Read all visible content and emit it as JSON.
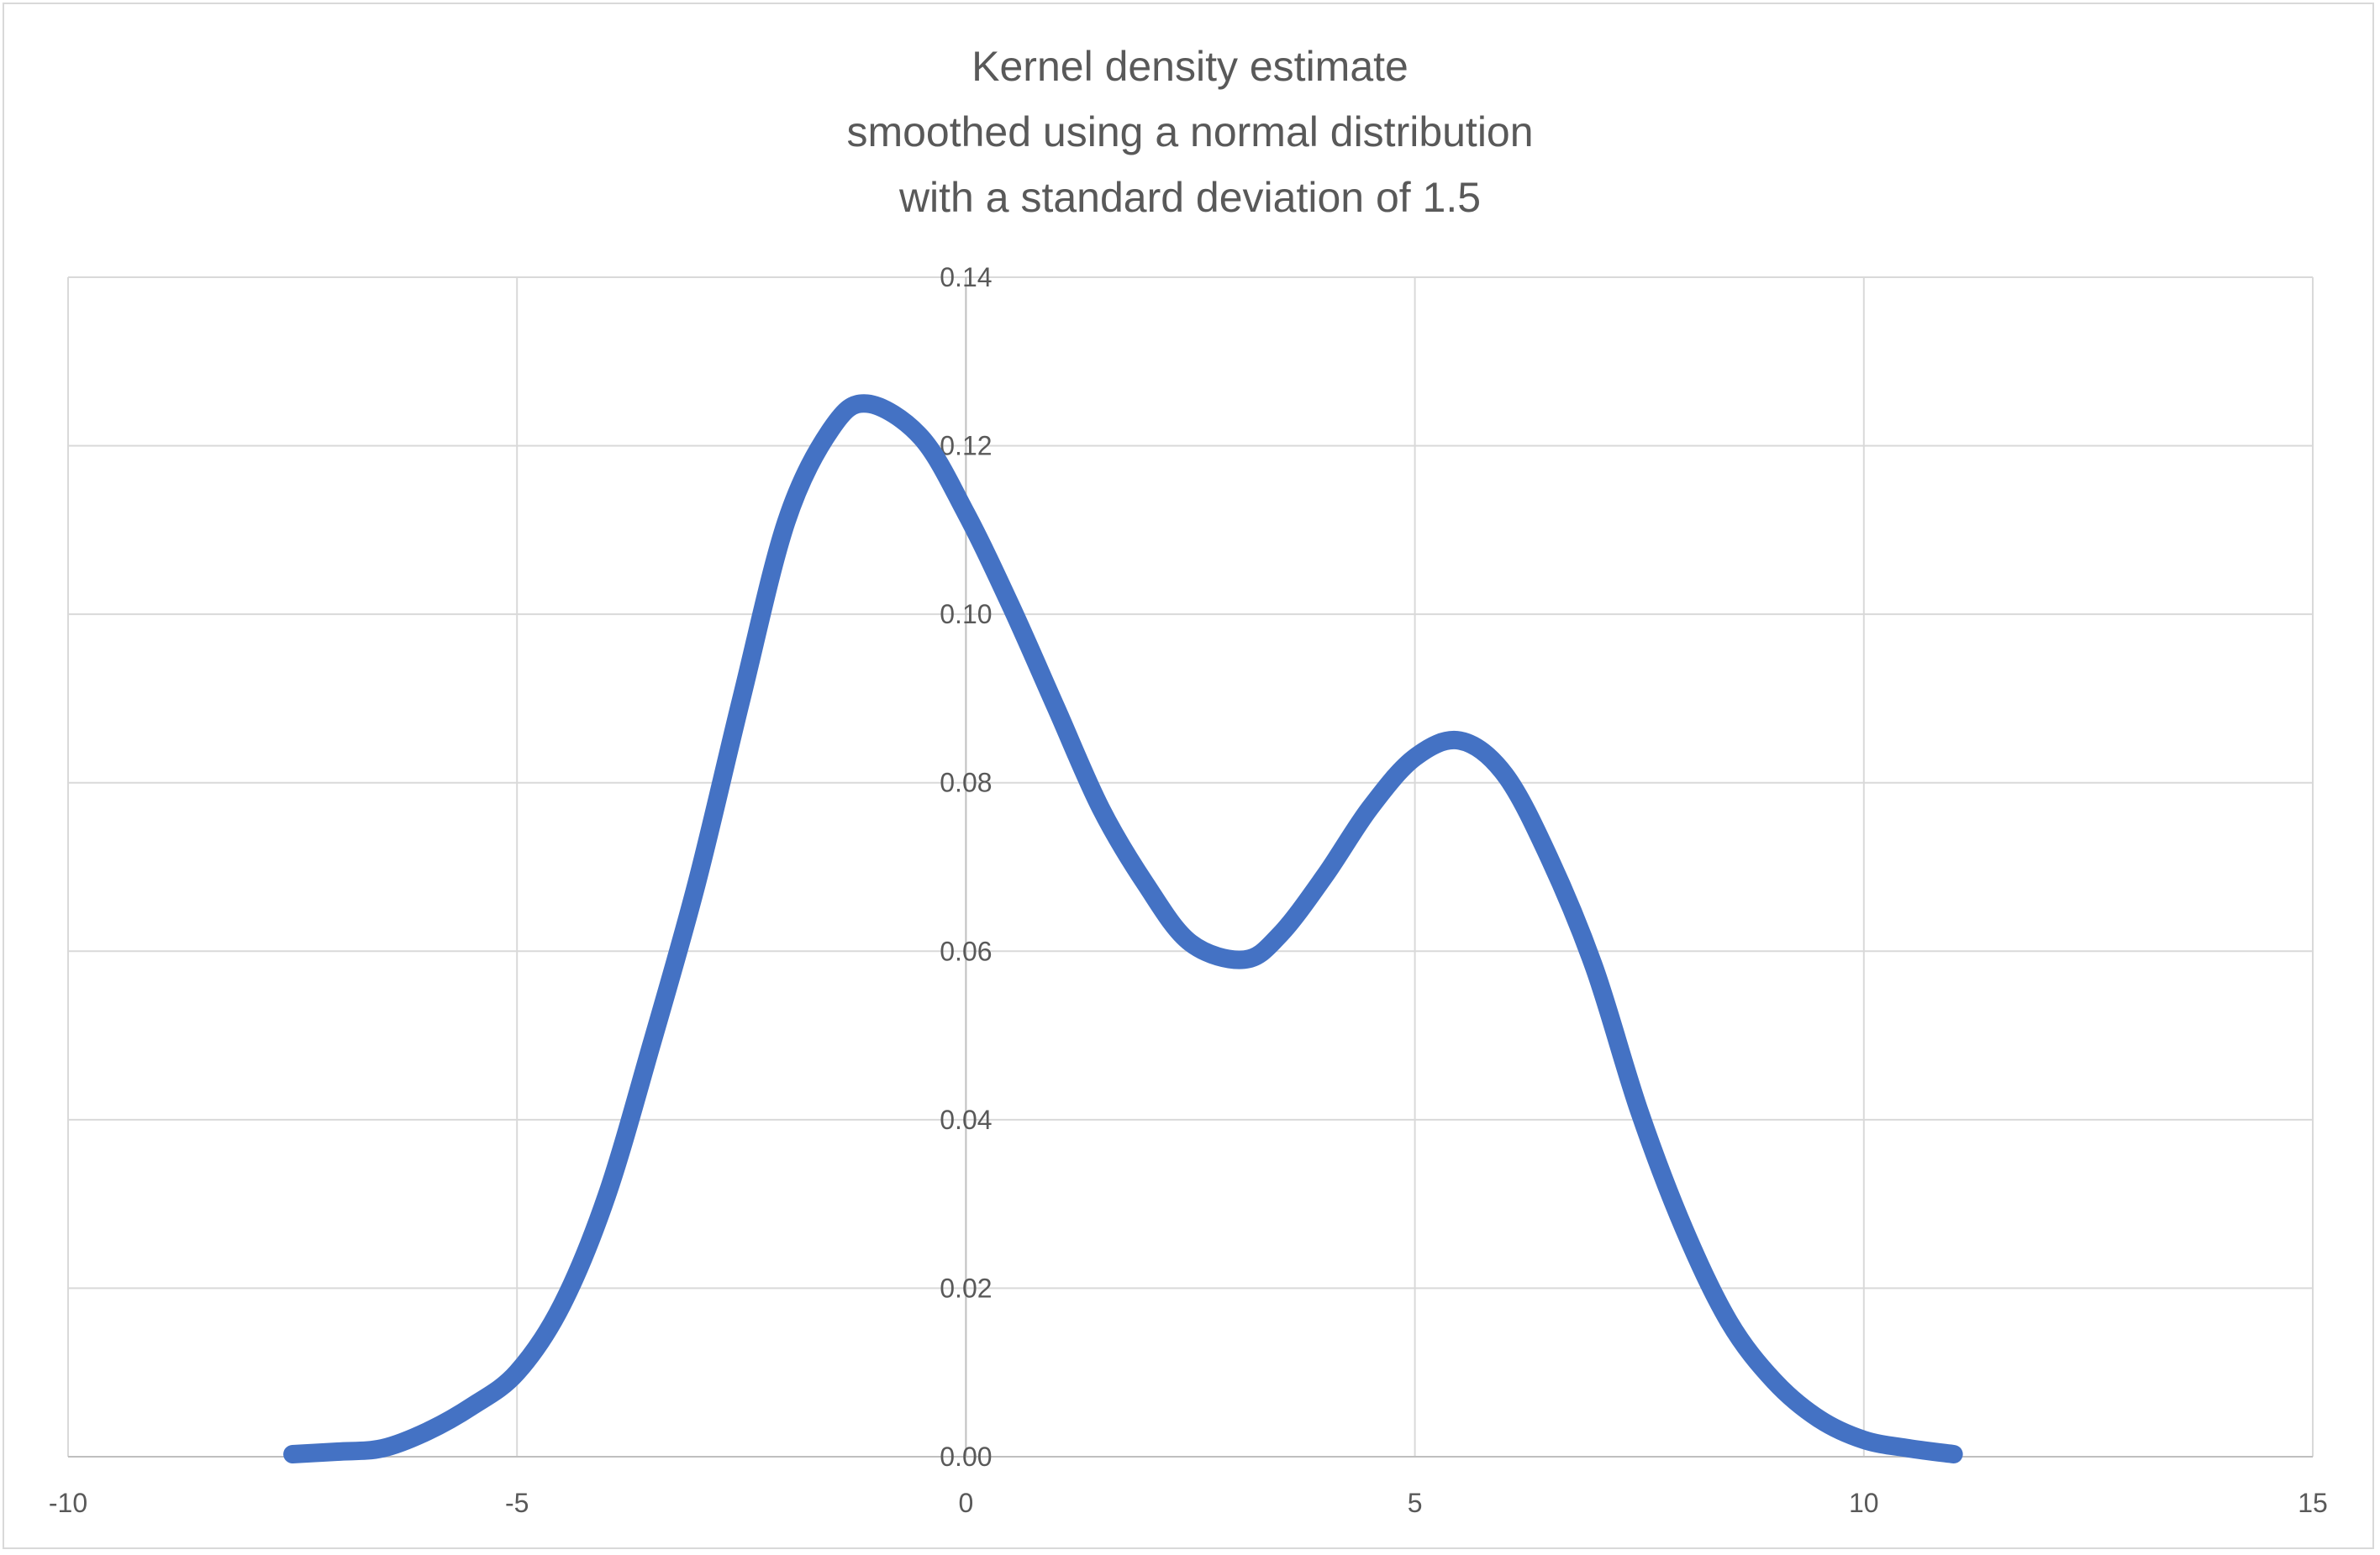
{
  "chart_data": {
    "type": "line",
    "title": [
      "Kernel density estimate",
      "smoothed using a normal distribution",
      "with a standard deviation of 1.5"
    ],
    "xlabel": "",
    "ylabel": "",
    "xlim": [
      -10,
      15
    ],
    "ylim": [
      0,
      0.14
    ],
    "xticks": [
      -10,
      -5,
      0,
      5,
      10,
      15
    ],
    "xtick_labels": [
      "-10",
      "-5",
      "0",
      "5",
      "10",
      "15"
    ],
    "yticks": [
      0,
      0.02,
      0.04,
      0.06,
      0.08,
      0.1,
      0.12,
      0.14
    ],
    "ytick_labels": [
      "0.00",
      "0.02",
      "0.04",
      "0.06",
      "0.08",
      "0.10",
      "0.12",
      "0.14"
    ],
    "grid": true,
    "legend": "none",
    "series": [
      {
        "color": "#4472c4",
        "x": [
          -7.5,
          -7,
          -6.5,
          -6,
          -5.5,
          -5,
          -4.5,
          -4,
          -3.5,
          -3,
          -2.5,
          -2,
          -1.5,
          -1.1,
          -0.5,
          0,
          0.5,
          1,
          1.5,
          2,
          2.5,
          3.1,
          3.5,
          4,
          4.5,
          5,
          5.5,
          6,
          6.5,
          7,
          7.5,
          8,
          8.5,
          9,
          9.5,
          10,
          10.5,
          11
        ],
        "y": [
          0.0003,
          0.0006,
          0.001,
          0.003,
          0.006,
          0.01,
          0.018,
          0.031,
          0.049,
          0.068,
          0.09,
          0.111,
          0.122,
          0.125,
          0.121,
          0.112,
          0.101,
          0.089,
          0.077,
          0.068,
          0.061,
          0.059,
          0.062,
          0.069,
          0.077,
          0.083,
          0.085,
          0.081,
          0.071,
          0.058,
          0.041,
          0.027,
          0.016,
          0.009,
          0.0045,
          0.002,
          0.001,
          0.0003
        ]
      }
    ]
  }
}
